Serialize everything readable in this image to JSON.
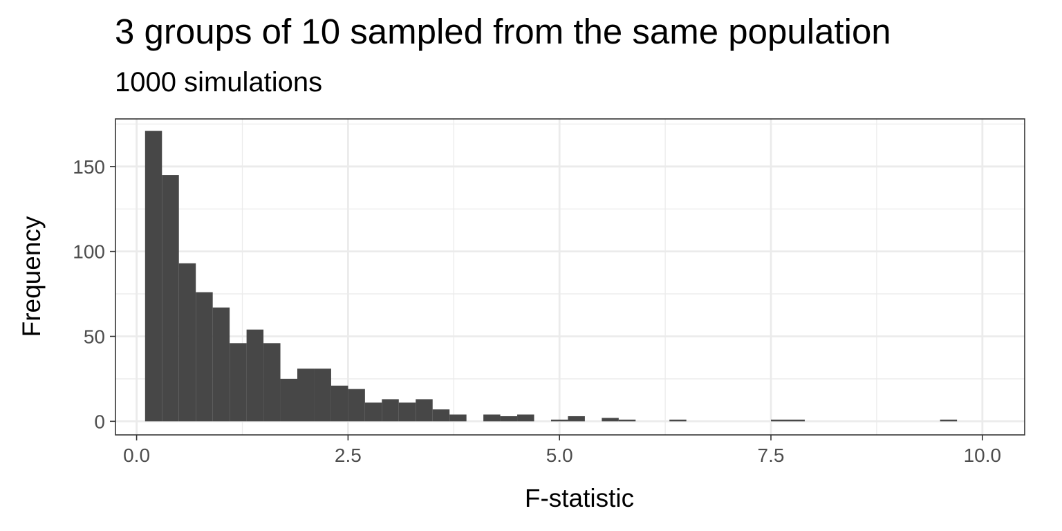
{
  "chart_data": {
    "type": "bar",
    "title": "3 groups of 10 sampled from the same population",
    "subtitle": "1000 simulations",
    "xlabel": "F-statistic",
    "ylabel": "Frequency",
    "xlim": [
      -0.25,
      10.5
    ],
    "ylim": [
      -8,
      178
    ],
    "x_ticks": [
      0.0,
      2.5,
      5.0,
      7.5,
      10.0
    ],
    "x_tick_labels": [
      "0.0",
      "2.5",
      "5.0",
      "7.5",
      "10.0"
    ],
    "y_ticks": [
      0,
      50,
      100,
      150
    ],
    "y_tick_labels": [
      "0",
      "50",
      "100",
      "150"
    ],
    "grid": true,
    "bar_color": "#474747",
    "bins": [
      {
        "x0": 0.1,
        "x1": 0.3,
        "count": 171
      },
      {
        "x0": 0.3,
        "x1": 0.5,
        "count": 145
      },
      {
        "x0": 0.5,
        "x1": 0.7,
        "count": 93
      },
      {
        "x0": 0.7,
        "x1": 0.9,
        "count": 76
      },
      {
        "x0": 0.9,
        "x1": 1.1,
        "count": 67
      },
      {
        "x0": 1.1,
        "x1": 1.3,
        "count": 46
      },
      {
        "x0": 1.3,
        "x1": 1.5,
        "count": 54
      },
      {
        "x0": 1.5,
        "x1": 1.7,
        "count": 46
      },
      {
        "x0": 1.7,
        "x1": 1.9,
        "count": 25
      },
      {
        "x0": 1.9,
        "x1": 2.1,
        "count": 31
      },
      {
        "x0": 2.1,
        "x1": 2.3,
        "count": 31
      },
      {
        "x0": 2.3,
        "x1": 2.5,
        "count": 21
      },
      {
        "x0": 2.5,
        "x1": 2.7,
        "count": 19
      },
      {
        "x0": 2.7,
        "x1": 2.9,
        "count": 11
      },
      {
        "x0": 2.9,
        "x1": 3.1,
        "count": 13
      },
      {
        "x0": 3.1,
        "x1": 3.3,
        "count": 11
      },
      {
        "x0": 3.3,
        "x1": 3.5,
        "count": 13
      },
      {
        "x0": 3.5,
        "x1": 3.7,
        "count": 7
      },
      {
        "x0": 3.7,
        "x1": 3.9,
        "count": 4
      },
      {
        "x0": 3.9,
        "x1": 4.1,
        "count": 0
      },
      {
        "x0": 4.1,
        "x1": 4.3,
        "count": 4
      },
      {
        "x0": 4.3,
        "x1": 4.5,
        "count": 3
      },
      {
        "x0": 4.5,
        "x1": 4.7,
        "count": 4
      },
      {
        "x0": 4.7,
        "x1": 4.9,
        "count": 0
      },
      {
        "x0": 4.9,
        "x1": 5.1,
        "count": 1
      },
      {
        "x0": 5.1,
        "x1": 5.3,
        "count": 3
      },
      {
        "x0": 5.3,
        "x1": 5.5,
        "count": 0
      },
      {
        "x0": 5.5,
        "x1": 5.7,
        "count": 2
      },
      {
        "x0": 5.7,
        "x1": 5.9,
        "count": 1
      },
      {
        "x0": 6.3,
        "x1": 6.5,
        "count": 1
      },
      {
        "x0": 7.5,
        "x1": 7.7,
        "count": 1
      },
      {
        "x0": 7.7,
        "x1": 7.9,
        "count": 1
      },
      {
        "x0": 9.5,
        "x1": 9.7,
        "count": 1
      }
    ]
  }
}
